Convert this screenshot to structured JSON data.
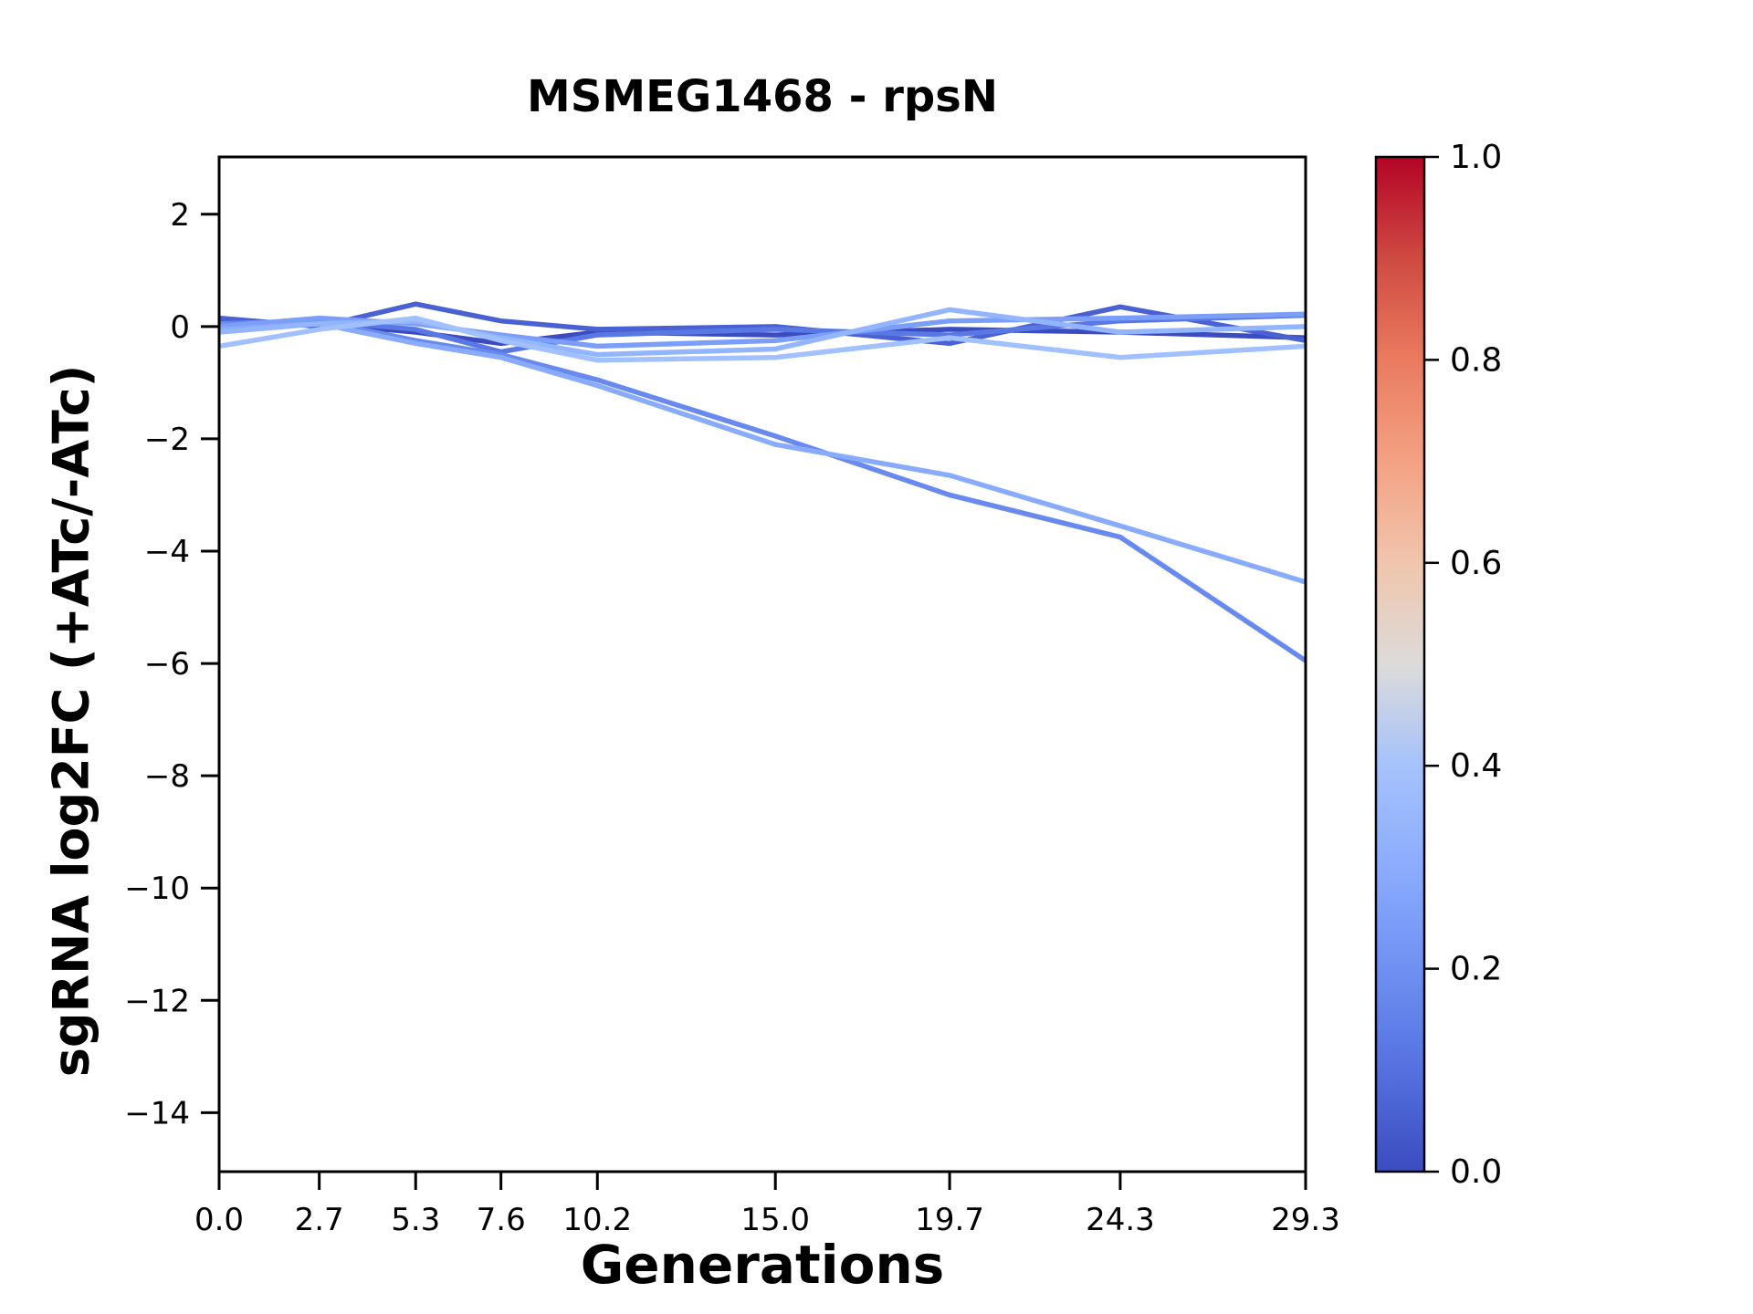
{
  "title": "MSMEG1468 - rpsN",
  "xlabel": "Generations",
  "ylabel": "sgRNA log2FC (+ATc/-ATc)",
  "chart_data": {
    "type": "line",
    "title": "MSMEG1468 - rpsN",
    "xlabel": "Generations",
    "ylabel": "sgRNA log2FC (+ATc/-ATc)",
    "x": [
      0.0,
      2.7,
      5.3,
      7.6,
      10.2,
      15.0,
      19.7,
      24.3,
      29.3
    ],
    "xticklabels": [
      "0.0",
      "2.7",
      "5.3",
      "7.6",
      "10.2",
      "15.0",
      "19.7",
      "24.3",
      "29.3"
    ],
    "yticks": [
      {
        "value": 2,
        "label": "2"
      },
      {
        "value": 0,
        "label": "0"
      },
      {
        "value": -2,
        "label": "−2"
      },
      {
        "value": -4,
        "label": "−4"
      },
      {
        "value": -6,
        "label": "−6"
      },
      {
        "value": -8,
        "label": "−8"
      },
      {
        "value": -10,
        "label": "−10"
      },
      {
        "value": -12,
        "label": "−12"
      },
      {
        "value": -14,
        "label": "−14"
      }
    ],
    "xlim": [
      0,
      29.3
    ],
    "ylim": [
      -15.05,
      3.02
    ],
    "grid": false,
    "legend": "none",
    "series": [
      {
        "name": "line-1",
        "cmap_value": 0.0,
        "color": "#3b4cc0",
        "values": [
          0.1,
          0.05,
          -0.1,
          -0.3,
          -0.1,
          -0.15,
          -0.05,
          -0.1,
          -0.2
        ]
      },
      {
        "name": "line-2",
        "cmap_value": 0.05,
        "color": "#4961d2",
        "values": [
          0.15,
          0.0,
          0.4,
          0.1,
          -0.05,
          0.0,
          -0.3,
          0.35,
          -0.25
        ]
      },
      {
        "name": "line-3",
        "cmap_value": 0.12,
        "color": "#5a78e4",
        "values": [
          0.0,
          0.1,
          -0.05,
          -0.45,
          -0.15,
          -0.05,
          -0.15,
          0.1,
          0.2
        ]
      },
      {
        "name": "line-4",
        "cmap_value": 0.2,
        "color": "#688aef",
        "values": [
          0.05,
          0.1,
          -0.25,
          -0.5,
          -0.95,
          -1.95,
          -3.0,
          -3.75,
          -5.95
        ]
      },
      {
        "name": "line-5",
        "cmap_value": 0.27,
        "color": "#7b9ff9",
        "values": [
          0.0,
          0.15,
          0.05,
          -0.15,
          -0.35,
          -0.25,
          0.1,
          0.15,
          0.22
        ]
      },
      {
        "name": "line-6",
        "cmap_value": 0.33,
        "color": "#88abfd",
        "values": [
          -0.05,
          0.05,
          -0.3,
          -0.55,
          -1.05,
          -2.1,
          -2.65,
          -3.55,
          -4.55
        ]
      },
      {
        "name": "line-7",
        "cmap_value": 0.38,
        "color": "#93b5fe",
        "values": [
          -0.1,
          0.05,
          0.1,
          -0.2,
          -0.5,
          -0.4,
          0.3,
          -0.1,
          0.0
        ]
      },
      {
        "name": "line-8",
        "cmap_value": 0.43,
        "color": "#a1c0ff",
        "values": [
          -0.35,
          -0.05,
          0.15,
          -0.25,
          -0.6,
          -0.55,
          -0.2,
          -0.55,
          -0.35
        ]
      }
    ],
    "colorbar": {
      "cmap": "coolwarm",
      "range": [
        0.0,
        1.0
      ],
      "ticks": [
        {
          "value": 1.0,
          "label": "1.0"
        },
        {
          "value": 0.8,
          "label": "0.8"
        },
        {
          "value": 0.6,
          "label": "0.6"
        },
        {
          "value": 0.4,
          "label": "0.4"
        },
        {
          "value": 0.2,
          "label": "0.2"
        },
        {
          "value": 0.0,
          "label": "0.0"
        }
      ],
      "stops": [
        {
          "offset": 0.0,
          "color": "#3b4cc0"
        },
        {
          "offset": 0.1,
          "color": "#5571df"
        },
        {
          "offset": 0.2,
          "color": "#6f90f2"
        },
        {
          "offset": 0.3,
          "color": "#8bacfd"
        },
        {
          "offset": 0.4,
          "color": "#a5c2fb"
        },
        {
          "offset": 0.5,
          "color": "#dcdbda"
        },
        {
          "offset": 0.6,
          "color": "#f0c5ac"
        },
        {
          "offset": 0.7,
          "color": "#f4a183"
        },
        {
          "offset": 0.8,
          "color": "#e97b5e"
        },
        {
          "offset": 0.9,
          "color": "#cf4a42"
        },
        {
          "offset": 1.0,
          "color": "#b40426"
        }
      ]
    }
  }
}
